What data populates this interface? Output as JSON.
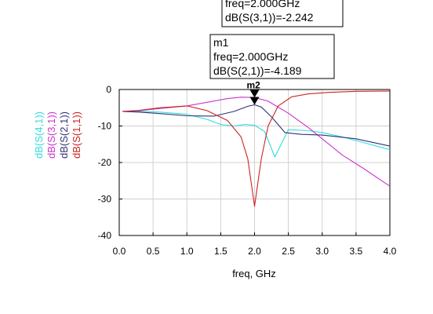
{
  "chart_data": {
    "type": "line",
    "xlabel": "freq, GHz",
    "xlim": [
      0.0,
      4.0
    ],
    "ylim": [
      -40,
      0
    ],
    "x_ticks": [
      "0.0",
      "0.5",
      "1.0",
      "1.5",
      "2.0",
      "2.5",
      "3.0",
      "3.5",
      "4.0"
    ],
    "y_ticks": [
      "0",
      "-10",
      "-20",
      "-30",
      "-40"
    ],
    "grid": true,
    "legend_placement": "left, rotated vertical",
    "series": [
      {
        "name": "dB(S(4,1))",
        "color": "#33dddd",
        "x": [
          0.05,
          0.3,
          0.6,
          1.0,
          1.3,
          1.5,
          1.7,
          1.85,
          2.0,
          2.15,
          2.3,
          2.5,
          2.8,
          3.0,
          3.3,
          3.6,
          4.0
        ],
        "y": [
          -6.0,
          -6.0,
          -6.2,
          -6.8,
          -8.2,
          -9.6,
          -10.0,
          -9.6,
          -9.8,
          -11.5,
          -18.5,
          -11.0,
          -11.3,
          -11.8,
          -13.0,
          -14.5,
          -16.5
        ]
      },
      {
        "name": "dB(S(3,1))",
        "color": "#cc33cc",
        "x": [
          0.05,
          0.3,
          0.6,
          1.0,
          1.3,
          1.6,
          1.8,
          2.0,
          2.2,
          2.5,
          2.8,
          3.0,
          3.3,
          3.6,
          4.0
        ],
        "y": [
          -6.0,
          -5.8,
          -5.2,
          -4.5,
          -3.5,
          -2.5,
          -2.1,
          -2.2,
          -3.2,
          -6.5,
          -10.5,
          -13.5,
          -18.0,
          -21.5,
          -26.5
        ]
      },
      {
        "name": "dB(S(2,1))",
        "color": "#333377",
        "x": [
          0.05,
          0.3,
          0.6,
          1.0,
          1.4,
          1.7,
          1.9,
          2.0,
          2.1,
          2.25,
          2.45,
          2.7,
          3.0,
          3.5,
          4.0
        ],
        "y": [
          -6.0,
          -6.2,
          -6.6,
          -7.2,
          -7.3,
          -6.0,
          -4.6,
          -4.2,
          -4.8,
          -7.5,
          -11.8,
          -12.3,
          -12.5,
          -13.5,
          -15.5
        ]
      },
      {
        "name": "dB(S(1,1))",
        "color": "#cc2222",
        "x": [
          0.05,
          0.3,
          0.6,
          1.0,
          1.3,
          1.6,
          1.8,
          1.9,
          2.0,
          2.1,
          2.2,
          2.35,
          2.55,
          2.8,
          3.1,
          3.5,
          4.0
        ],
        "y": [
          -6.0,
          -5.7,
          -5.0,
          -4.5,
          -5.8,
          -8.5,
          -13.0,
          -19.0,
          -32.0,
          -19.0,
          -10.0,
          -4.5,
          -2.0,
          -1.2,
          -0.8,
          -0.5,
          -0.4
        ]
      }
    ],
    "markers": [
      {
        "name": "m1",
        "lines": [
          "freq=2.000GHz",
          "dB(S(2,1))=-4.189"
        ],
        "x": 2.0,
        "y": -4.189
      },
      {
        "name": "m2",
        "lines": [
          "freq=2.000GHz",
          "dB(S(3,1))=-2.242"
        ],
        "x": 2.0,
        "y": -2.242
      }
    ]
  }
}
